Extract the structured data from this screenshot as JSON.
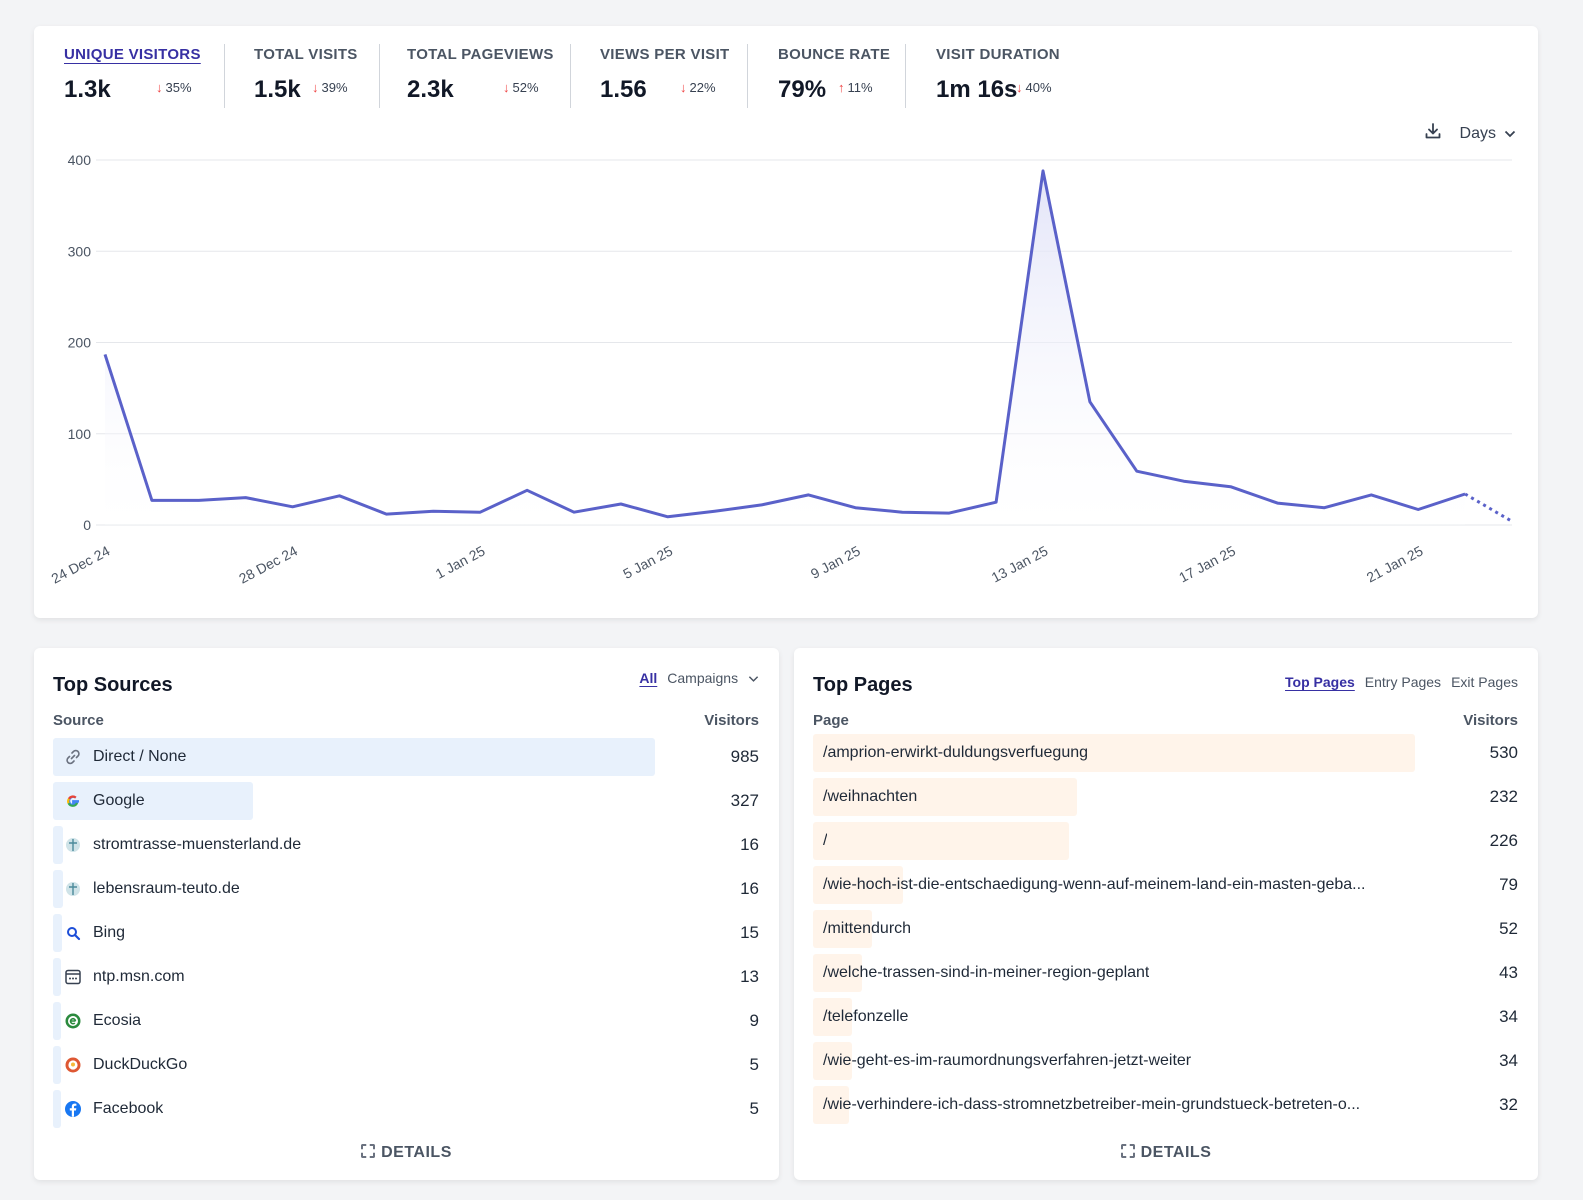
{
  "metrics": [
    {
      "label": "UNIQUE VISITORS",
      "value": "1.3k",
      "change": "35%",
      "direction": "down",
      "active": true
    },
    {
      "label": "TOTAL VISITS",
      "value": "1.5k",
      "change": "39%",
      "direction": "down"
    },
    {
      "label": "TOTAL PAGEVIEWS",
      "value": "2.3k",
      "change": "52%",
      "direction": "down"
    },
    {
      "label": "VIEWS PER VISIT",
      "value": "1.56",
      "change": "22%",
      "direction": "down"
    },
    {
      "label": "BOUNCE RATE",
      "value": "79%",
      "change": "11%",
      "direction": "up"
    },
    {
      "label": "VISIT DURATION",
      "value": "1m 16s",
      "change": "40%",
      "direction": "down"
    }
  ],
  "chart_controls": {
    "interval": "Days"
  },
  "chart_data": {
    "type": "area",
    "x_tick_labels": [
      "24 Dec 24",
      "28 Dec 24",
      "1 Jan 25",
      "5 Jan 25",
      "9 Jan 25",
      "13 Jan 25",
      "17 Jan 25",
      "21 Jan 25"
    ],
    "y_ticks": [
      0,
      100,
      200,
      300,
      400
    ],
    "ylim": [
      0,
      400
    ],
    "x": [
      "24 Dec 24",
      "25 Dec 24",
      "26 Dec 24",
      "27 Dec 24",
      "28 Dec 24",
      "29 Dec 24",
      "30 Dec 24",
      "31 Dec 24",
      "1 Jan 25",
      "2 Jan 25",
      "3 Jan 25",
      "4 Jan 25",
      "5 Jan 25",
      "6 Jan 25",
      "7 Jan 25",
      "8 Jan 25",
      "9 Jan 25",
      "10 Jan 25",
      "11 Jan 25",
      "12 Jan 25",
      "13 Jan 25",
      "14 Jan 25",
      "15 Jan 25",
      "16 Jan 25",
      "17 Jan 25",
      "18 Jan 25",
      "19 Jan 25",
      "20 Jan 25",
      "21 Jan 25",
      "22 Jan 25",
      "23 Jan 25"
    ],
    "series": [
      {
        "values": [
          187,
          27,
          27,
          30,
          20,
          32,
          12,
          15,
          14,
          38,
          14,
          23,
          9,
          15,
          22,
          33,
          19,
          14,
          13,
          25,
          388,
          135,
          59,
          48,
          42,
          24,
          19,
          33,
          17,
          34,
          4
        ],
        "partial_last": true
      }
    ],
    "grid": true,
    "colors": {
      "line": "#5a61c9",
      "fill_top": "#dfe1f7",
      "fill_bottom": "#ffffff"
    }
  },
  "sources": {
    "title": "Top Sources",
    "tabs": {
      "all": "All",
      "campaigns": "Campaigns"
    },
    "col_source": "Source",
    "col_visitors": "Visitors",
    "bar_color": "#e8f1fc",
    "rows": [
      {
        "label": "Direct / None",
        "value": "985",
        "icon": "link-icon",
        "fraction": 1.0
      },
      {
        "label": "Google",
        "value": "327",
        "icon": "google-icon",
        "fraction": 0.332
      },
      {
        "label": "stromtrasse-muensterland.de",
        "value": "16",
        "icon": "site-favicon",
        "fraction": 0.016
      },
      {
        "label": "lebensraum-teuto.de",
        "value": "16",
        "icon": "site-favicon",
        "fraction": 0.016
      },
      {
        "label": "Bing",
        "value": "15",
        "icon": "bing-icon",
        "fraction": 0.015
      },
      {
        "label": "ntp.msn.com",
        "value": "13",
        "icon": "browser-window-icon",
        "fraction": 0.013
      },
      {
        "label": "Ecosia",
        "value": "9",
        "icon": "ecosia-icon",
        "fraction": 0.009
      },
      {
        "label": "DuckDuckGo",
        "value": "5",
        "icon": "duckduckgo-icon",
        "fraction": 0.005
      },
      {
        "label": "Facebook",
        "value": "5",
        "icon": "facebook-icon",
        "fraction": 0.005
      }
    ],
    "details": "DETAILS"
  },
  "pages": {
    "title": "Top Pages",
    "tabs": {
      "top": "Top Pages",
      "entry": "Entry Pages",
      "exit": "Exit Pages"
    },
    "col_page": "Page",
    "col_visitors": "Visitors",
    "bar_color": "#fff4ea",
    "rows": [
      {
        "label": "/amprion-erwirkt-duldungsverfuegung",
        "value": "530",
        "fraction": 1.0
      },
      {
        "label": "/weihnachten",
        "value": "232",
        "fraction": 0.438
      },
      {
        "label": "/",
        "value": "226",
        "fraction": 0.426
      },
      {
        "label": "/wie-hoch-ist-die-entschaedigung-wenn-auf-meinem-land-ein-masten-geba...",
        "value": "79",
        "fraction": 0.149
      },
      {
        "label": "/mittendurch",
        "value": "52",
        "fraction": 0.098
      },
      {
        "label": "/welche-trassen-sind-in-meiner-region-geplant",
        "value": "43",
        "fraction": 0.081
      },
      {
        "label": "/telefonzelle",
        "value": "34",
        "fraction": 0.064
      },
      {
        "label": "/wie-geht-es-im-raumordnungsverfahren-jetzt-weiter",
        "value": "34",
        "fraction": 0.064
      },
      {
        "label": "/wie-verhindere-ich-dass-stromnetzbetreiber-mein-grundstueck-betreten-o...",
        "value": "32",
        "fraction": 0.06
      }
    ],
    "details": "DETAILS"
  }
}
